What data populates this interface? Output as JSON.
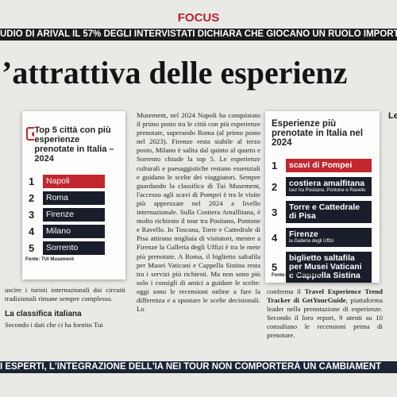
{
  "header": {
    "section": "FOCUS",
    "banner": "UDIO DI ARIVAL IL 57% DEGLI INTERVISTATI DICHIARA CHE GIOCANO UN RUOLO IMPORTA",
    "headline": "’attrattiva delle esperienz"
  },
  "card_left": {
    "title": "Top 5 città con più esperienze prenotate in Italia – 2024",
    "items": [
      {
        "rank": 1,
        "label": "Napoli"
      },
      {
        "rank": 2,
        "label": "Roma"
      },
      {
        "rank": 3,
        "label": "Firenze"
      },
      {
        "rank": 4,
        "label": "Milano"
      },
      {
        "rank": 5,
        "label": "Sorrento"
      }
    ],
    "source": "Fonte: TUI Musement"
  },
  "card_right": {
    "title": "Esperienze più prenotate in Italia nel 2024",
    "items": [
      {
        "rank": 1,
        "label": "scavi di Pompei"
      },
      {
        "rank": 2,
        "label": "costiera amalfitana",
        "sub": "tour tra Positano, Pontone e Ravello"
      },
      {
        "rank": 3,
        "label": "Torre e Cattedrale di Pisa"
      },
      {
        "rank": 4,
        "label": "Firenze",
        "sub": "la Galleria degli Uffizi"
      },
      {
        "rank": 5,
        "label": "biglietto saltafila per Musei Vaticani e Cappella Sistina"
      }
    ],
    "source": "Fonte: TUI Musement"
  },
  "body": {
    "left_text": "uscire i turisti internazionali dai circuiti tradizionali rimane sempre complesso.",
    "subheading": "La classifica italiana",
    "left_text_2": "Secondo i dati che ci ha fornito Tui",
    "middle_text": "Musement, nel 2024 Napoli ha conquistato il primo posto tra le città con più esperienze prenotate, superando Roma (al primo posto nel 2023). Firenze resta stabile al terzo posto, Milano è salita dal quinto al quarto e Sorrento chiude la top 5. Le esperienze culturali e paesaggistiche restano essenziali e guidano le scelte dei viaggiatori. Sempre guardando la classifica di Tui Musement, l'accesso agli scavi di Pompei è tra le visite più apprezzate nel 2024 a livello internazionale. Sulla Costiera Amalfitana, è molto richiesto il tour tra Positano, Pontone e Ravello. In Toscana, Torre e Cattedrale di Pisa attirano migliaia di visitatori, mentre a Firenze la Galleria degli Uffizi è tra le mete più prenotate. A Roma, il biglietto saltafila per Musei Vaticani e Cappella Sistina resta tra i servizi più richiesti. Ma non sono più solo i consigli di amici a guidare le scelte: oggi sono le recensioni online a fare la differenza e a spostare le scelte decisionali. Lo",
    "right_text_1": "conferma il ",
    "right_text_bold": "Travel Experience Trend Tracker di GetYourGuide",
    "right_text_2": ", piattaforma leader nella prenotazione di esperienze. Secondo il loro report, 9 utenti su 10 consultano le recensioni prima di prenotare.",
    "far_right": "Le"
  },
  "footer": {
    "banner": "I ESPERTI, L'INTEGRAZIONE DELL'IA NEI TOUR NON COMPORTERÀ UN CAMBIAMENT"
  }
}
